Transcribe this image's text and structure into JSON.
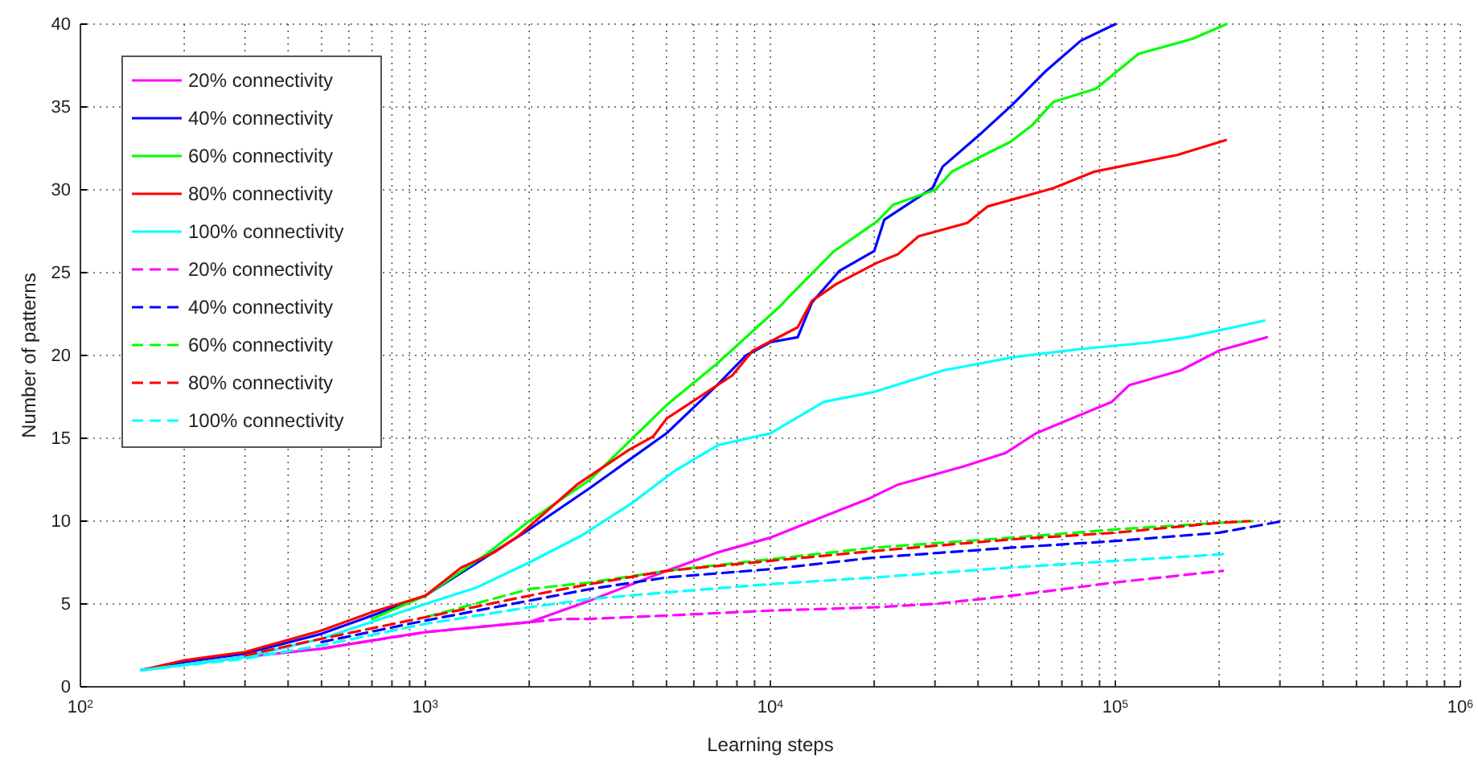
{
  "chart_data": {
    "type": "line",
    "xlabel": "Learning steps",
    "ylabel": "Number of patterns",
    "log": "x",
    "grid": true,
    "legend": "top left",
    "line_style": "solid",
    "marker": "none",
    "xlim": [
      100,
      1000000
    ],
    "ylim": [
      0,
      40
    ],
    "xticks": [
      {
        "value": 100,
        "label": "10$^{2}$"
      },
      {
        "value": 200,
        "label": null
      },
      {
        "value": 300,
        "label": null
      },
      {
        "value": 400,
        "label": null
      },
      {
        "value": 500,
        "label": null
      },
      {
        "value": 600,
        "label": null
      },
      {
        "value": 700,
        "label": null
      },
      {
        "value": 800,
        "label": null
      },
      {
        "value": 900,
        "label": null
      },
      {
        "value": 1000,
        "label": "10$^{3}$"
      },
      {
        "value": 2000,
        "label": null
      },
      {
        "value": 3000,
        "label": null
      },
      {
        "value": 4000,
        "label": null
      },
      {
        "value": 5000,
        "label": null
      },
      {
        "value": 6000,
        "label": null
      },
      {
        "value": 7000,
        "label": null
      },
      {
        "value": 8000,
        "label": null
      },
      {
        "value": 9000,
        "label": null
      },
      {
        "value": 10000,
        "label": "10$^{4}$"
      },
      {
        "value": 20000,
        "label": null
      },
      {
        "value": 30000,
        "label": null
      },
      {
        "value": 40000,
        "label": null
      },
      {
        "value": 50000,
        "label": null
      },
      {
        "value": 60000,
        "label": null
      },
      {
        "value": 70000,
        "label": null
      },
      {
        "value": 80000,
        "label": null
      },
      {
        "value": 90000,
        "label": null
      },
      {
        "value": 100000,
        "label": "10$^{5}$"
      },
      {
        "value": 200000,
        "label": null
      },
      {
        "value": 300000,
        "label": null
      },
      {
        "value": 400000,
        "label": null
      },
      {
        "value": 500000,
        "label": null
      },
      {
        "value": 600000,
        "label": null
      },
      {
        "value": 700000,
        "label": null
      },
      {
        "value": 800000,
        "label": null
      },
      {
        "value": 900000,
        "label": null
      },
      {
        "value": 1000000,
        "label": "10$^{6}$"
      }
    ],
    "yticks": [
      0,
      5,
      10,
      15,
      20,
      25,
      30,
      35,
      40
    ],
    "series": [
      {
        "name": "20% connectivity",
        "color": "#ff00ff",
        "x": [
          150,
          300,
          500,
          700,
          1000,
          2000,
          3000,
          5000,
          7000,
          10000,
          19500,
          23400,
          36300,
          47900,
          58900,
          97700,
          109600,
          155000,
          200000,
          275000
        ],
        "values": [
          1,
          1.8,
          2.3,
          2.8,
          3.3,
          3.9,
          5.2,
          7,
          8.1,
          9,
          11.4,
          12.2,
          13.3,
          14.1,
          15.3,
          17.2,
          18.2,
          19.1,
          20.3,
          21.1
        ]
      },
      {
        "name": "40% connectivity",
        "color": "#0000ff",
        "x": [
          150,
          200,
          300,
          500,
          700,
          1000,
          2000,
          3000,
          5000,
          7000,
          8500,
          10000,
          12000,
          13200,
          15850,
          20000,
          21400,
          29500,
          31600,
          39800,
          50100,
          63100,
          79400,
          100000
        ],
        "values": [
          1,
          1.5,
          2,
          3.2,
          4.3,
          5.5,
          9.5,
          12,
          15.3,
          18.2,
          20,
          20.8,
          21.1,
          23.2,
          25.1,
          26.3,
          28.2,
          30.1,
          31.4,
          33.2,
          35.1,
          37.2,
          39,
          40
        ]
      },
      {
        "name": "60% connectivity",
        "color": "#00ff00",
        "x": [
          700,
          1000,
          1500,
          2000,
          3000,
          5000,
          7000,
          10700,
          11900,
          15300,
          17700,
          20400,
          22700,
          30100,
          33600,
          41600,
          49700,
          57400,
          66100,
          87900,
          116700,
          166700,
          210000
        ],
        "values": [
          4.1,
          5.5,
          8,
          10,
          12.5,
          17,
          19.5,
          23,
          24,
          26.3,
          27.2,
          28.1,
          29.1,
          30,
          31.1,
          32.1,
          32.9,
          33.9,
          35.3,
          36.1,
          38.2,
          39.1,
          40
        ]
      },
      {
        "name": "80% connectivity",
        "color": "#ff0000",
        "x": [
          150,
          200,
          300,
          500,
          700,
          1000,
          1270,
          1580,
          1860,
          2750,
          3890,
          4570,
          5010,
          7760,
          8900,
          12000,
          13200,
          15500,
          20400,
          23400,
          26900,
          37200,
          42700,
          66100,
          87100,
          151000,
          209000
        ],
        "values": [
          1,
          1.6,
          2.1,
          3.4,
          4.5,
          5.5,
          7.2,
          8.1,
          9.1,
          12.2,
          14.3,
          15.1,
          16.2,
          18.8,
          20.3,
          21.7,
          23.3,
          24.3,
          25.6,
          26.1,
          27.2,
          28,
          29,
          30.1,
          31.1,
          32.1,
          33
        ]
      },
      {
        "name": "100% connectivity",
        "color": "#00ffff",
        "x": [
          150,
          300,
          500,
          1000,
          1410,
          2000,
          2820,
          3980,
          5250,
          7080,
          10000,
          14300,
          20000,
          31800,
          50600,
          80300,
          127600,
          161000,
          270000
        ],
        "values": [
          1,
          1.8,
          2.9,
          5,
          6,
          7.5,
          9.1,
          11.1,
          13,
          14.6,
          15.3,
          17.2,
          17.8,
          19.1,
          19.9,
          20.4,
          20.8,
          21.1,
          22.1
        ]
      },
      {
        "name": "20% connectivity",
        "color": "#ff00ff",
        "line_style": "dashed",
        "x": [
          500,
          1000,
          2000,
          2500,
          3000,
          5000,
          10000,
          20000,
          30000,
          50000,
          100000,
          205000
        ],
        "values": [
          2.3,
          3.3,
          3.9,
          4.1,
          4.1,
          4.3,
          4.6,
          4.8,
          5,
          5.5,
          6.3,
          7
        ]
      },
      {
        "name": "40% connectivity",
        "color": "#0000ff",
        "line_style": "dashed",
        "x": [
          500,
          1000,
          2000,
          3000,
          5000,
          10000,
          20000,
          50000,
          100000,
          200000,
          305000
        ],
        "values": [
          2.7,
          4,
          5.2,
          5.9,
          6.6,
          7.1,
          7.8,
          8.4,
          8.8,
          9.3,
          10
        ]
      },
      {
        "name": "60% connectivity",
        "color": "#00ff00",
        "line_style": "dashed",
        "x": [
          1000,
          2000,
          3000,
          5000,
          10000,
          20000,
          50000,
          100000,
          200000,
          250000
        ],
        "values": [
          4.2,
          5.9,
          6.3,
          7,
          7.7,
          8.4,
          9,
          9.5,
          9.9,
          10
        ]
      },
      {
        "name": "80% connectivity",
        "color": "#ff0000",
        "line_style": "dashed",
        "x": [
          300,
          500,
          1000,
          2000,
          3000,
          5000,
          10000,
          20000,
          50000,
          100000,
          200000,
          245000
        ],
        "values": [
          1.9,
          2.9,
          4.2,
          5.5,
          6.2,
          7,
          7.6,
          8.2,
          8.9,
          9.3,
          9.9,
          10
        ]
      },
      {
        "name": "100% connectivity",
        "color": "#00ffff",
        "line_style": "dashed",
        "x": [
          150,
          300,
          500,
          1000,
          2000,
          3000,
          5000,
          10000,
          20000,
          50000,
          100000,
          205000
        ],
        "values": [
          1,
          1.7,
          2.5,
          3.8,
          4.8,
          5.3,
          5.7,
          6.2,
          6.6,
          7.2,
          7.6,
          8
        ]
      }
    ]
  }
}
